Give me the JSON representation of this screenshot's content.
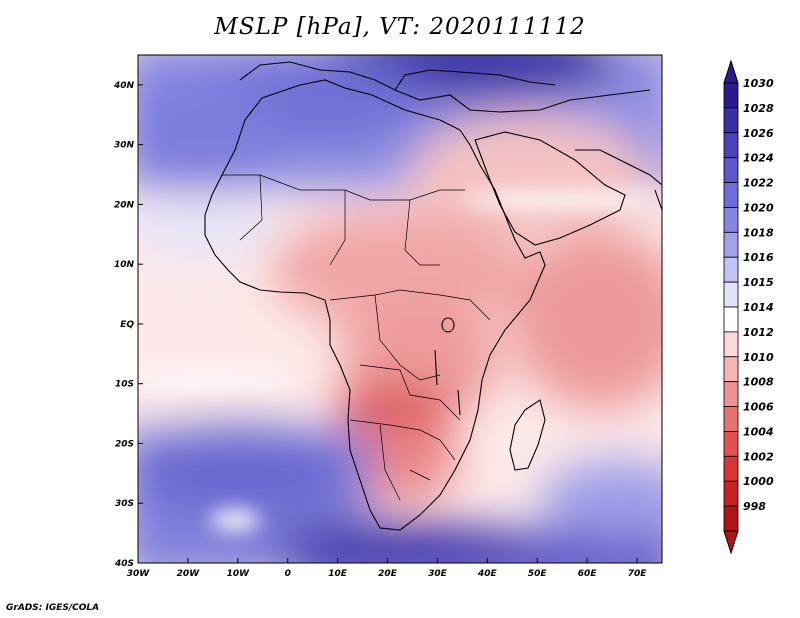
{
  "title": "MSLP [hPa], VT: 2020111112",
  "credit": "GrADS: IGES/COLA",
  "map": {
    "region": "Africa",
    "lon_range": [
      -30,
      75
    ],
    "lat_range": [
      -40,
      45
    ],
    "lon_ticks": [
      "30W",
      "20W",
      "10W",
      "0",
      "10E",
      "20E",
      "30E",
      "40E",
      "50E",
      "60E",
      "70E"
    ],
    "lat_ticks": [
      "40N",
      "30N",
      "20N",
      "10N",
      "EQ",
      "10S",
      "20S",
      "30S",
      "40S"
    ]
  },
  "colorbar": {
    "levels": [
      "1030",
      "1028",
      "1026",
      "1024",
      "1022",
      "1020",
      "1018",
      "1016",
      "1015",
      "1014",
      "1012",
      "1010",
      "1008",
      "1006",
      "1004",
      "1002",
      "1000",
      "998"
    ],
    "colors": [
      "#2a1a8c",
      "#3b2fa6",
      "#4b43bd",
      "#5b58cc",
      "#6e6ed8",
      "#8686e2",
      "#a2a2ec",
      "#c2c2f3",
      "#e2e2fa",
      "#ffffff",
      "#fbd9d9",
      "#f5b6b6",
      "#ee9393",
      "#e87171",
      "#e25151",
      "#d83535",
      "#c82323",
      "#b01515"
    ]
  }
}
